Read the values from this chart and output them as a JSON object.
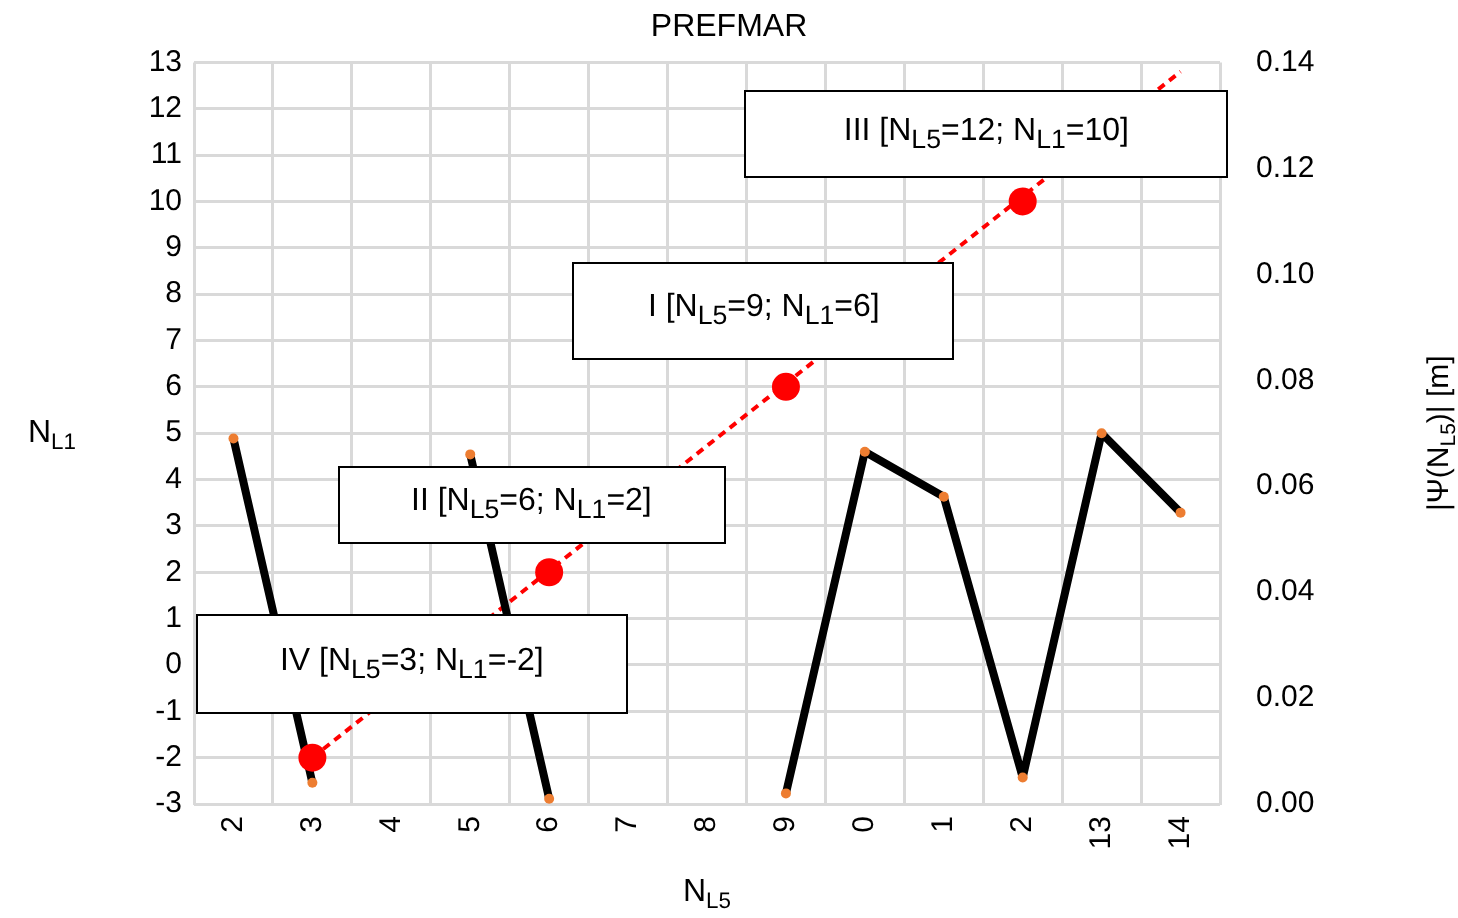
{
  "chart_data": {
    "type": "line",
    "title": "PREFMAR",
    "xlabel": "N$_{L5}$",
    "ylabel": "N$_{L1}$",
    "y2label": "|Ψ(N$_{L5}$)| [m]",
    "categories": [
      "2",
      "3",
      "4",
      "5",
      "6",
      "7",
      "8",
      "9",
      "0",
      "1",
      "2",
      "13",
      "14"
    ],
    "series": [
      {
        "type": "line",
        "axis": "y2",
        "color": "#000000",
        "marker": "circle",
        "values": [
          0.069,
          0.004,
          null,
          0.066,
          0.001,
          null,
          null,
          0.002,
          0.0665,
          0.058,
          0.005,
          0.07,
          0.055
        ]
      },
      {
        "type": "scatter",
        "color": "#ff0000",
        "marker": "circle",
        "values": [
          null,
          -2,
          null,
          null,
          2,
          null,
          null,
          6,
          null,
          null,
          10,
          null,
          null
        ]
      },
      {
        "type": "line",
        "color": "#ff0000",
        "marker": "none",
        "line_style": "dashed",
        "values": [
          null,
          -2,
          null,
          null,
          null,
          null,
          null,
          null,
          null,
          null,
          null,
          null,
          12.8
        ]
      }
    ],
    "ylim": [
      -3,
      13
    ],
    "yticks": [
      -3,
      -2,
      -1,
      0,
      1,
      2,
      3,
      4,
      5,
      6,
      7,
      8,
      9,
      10,
      11,
      12,
      13
    ],
    "y2lim": [
      0,
      0.14
    ],
    "y2ticks": [
      {
        "value": 0,
        "label": "0.00"
      },
      {
        "value": 0.02,
        "label": "0.02"
      },
      {
        "value": 0.04,
        "label": "0.04"
      },
      {
        "value": 0.06,
        "label": "0.06"
      },
      {
        "value": 0.08,
        "label": "0.08"
      },
      {
        "value": 0.1,
        "label": "0.10"
      },
      {
        "value": 0.12,
        "label": "0.12"
      },
      {
        "value": 0.14,
        "label": "0.14"
      }
    ],
    "annotations": [
      "III [N$_{L5}$=12; N$_{L1}$=10]",
      "I [N$_{L5}$=9; N$_{L1}$=6]",
      "II [N$_{L5}$=6; N$_{L1}$=2]",
      "IV [N$_{L5}$=3; N$_{L1}$=-2]"
    ],
    "grid": true,
    "legend": false
  }
}
